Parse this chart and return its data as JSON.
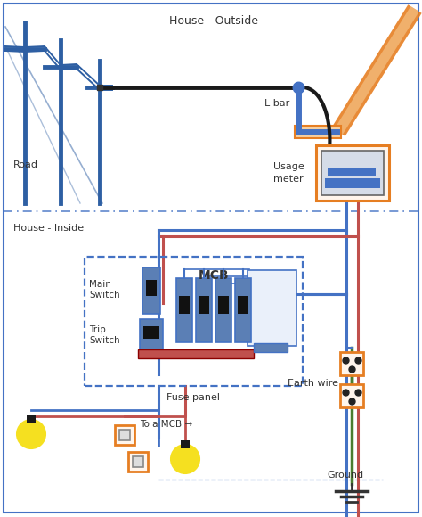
{
  "bg_color": "#ffffff",
  "border_color": "#4472c4",
  "title_outside": "House - Outside",
  "title_inside": "House - Inside",
  "label_road": "Road",
  "label_lbar": "L bar",
  "label_usage_meter": "Usage\nmeter",
  "label_fuse_panel": "Fuse panel",
  "label_main_switch": "Main\nSwitch",
  "label_trip_switch": "Trip\nSwitch",
  "label_mcb": "MCB",
  "label_earth_wire": "Earth wire",
  "label_ground": "Ground",
  "label_to_mcb": "To a MCB →",
  "blue": "#4472c4",
  "red": "#c0504d",
  "orange": "#e67e22",
  "green": "#4a7c2f",
  "black": "#1a1a1a",
  "pole_color": "#2e5fa3",
  "pole_fill": "#4472c4",
  "wire_blue": "#4472c4",
  "wire_red": "#c0504d",
  "wire_green": "#4a7c2f",
  "wire_black": "#1a1a1a",
  "mcb_fill": "#5b7fb5",
  "bus_red": "#c0504d"
}
